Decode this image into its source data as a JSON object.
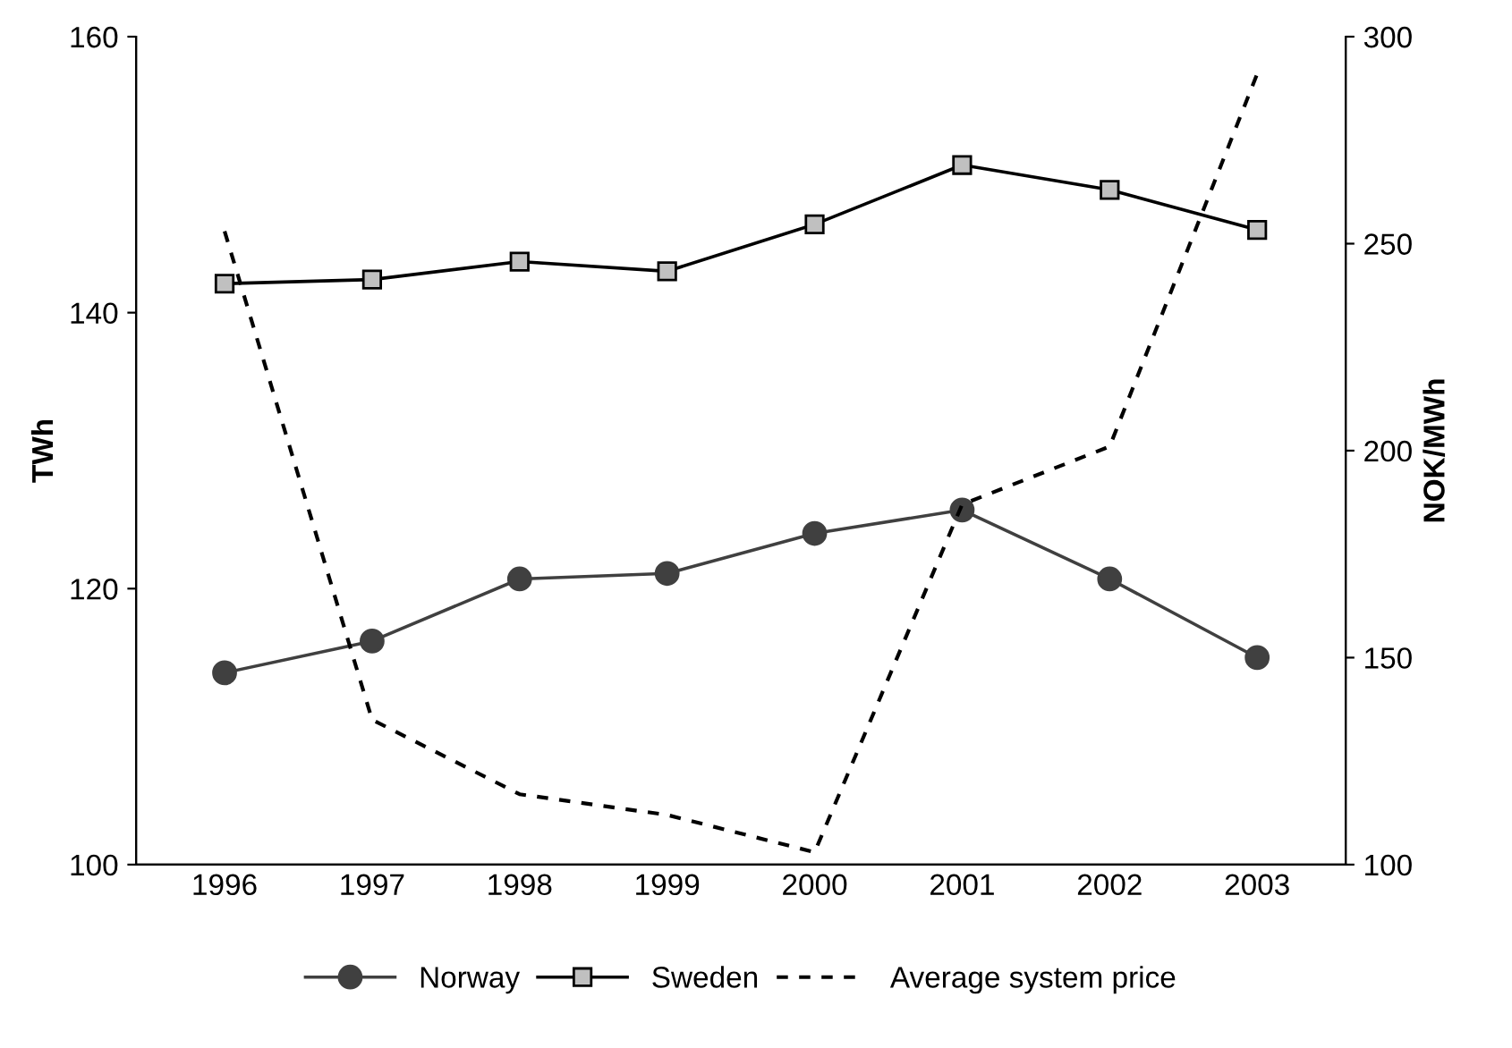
{
  "chart_data": {
    "type": "line",
    "ylabel": "TWh",
    "y2label": "NOK/MWh",
    "categories": [
      "1996",
      "1997",
      "1998",
      "1999",
      "2000",
      "2001",
      "2002",
      "2003"
    ],
    "series": [
      {
        "name": "Norway",
        "color": "#404040",
        "marker": "circle",
        "line_style": "solid",
        "values": [
          113.9,
          116.2,
          120.7,
          121.1,
          124.0,
          125.7,
          120.7,
          115.0
        ]
      },
      {
        "name": "Sweden",
        "color": "#000000",
        "marker": "square",
        "line_style": "solid",
        "values": [
          142.1,
          142.4,
          143.7,
          143.0,
          146.4,
          150.7,
          148.9,
          146.0
        ]
      },
      {
        "name": "Average system price",
        "color": "#000000",
        "marker": "none",
        "line_style": "dotted",
        "axis": "y2",
        "values": [
          253,
          135,
          117,
          112,
          103,
          187,
          201,
          291
        ]
      }
    ],
    "ylim": [
      100,
      160
    ],
    "yticks": [
      100,
      120,
      140,
      160
    ],
    "y2lim": [
      100,
      300
    ],
    "y2ticks": [
      100,
      150,
      200,
      250,
      300
    ],
    "grid": false,
    "legend": "bottom"
  }
}
